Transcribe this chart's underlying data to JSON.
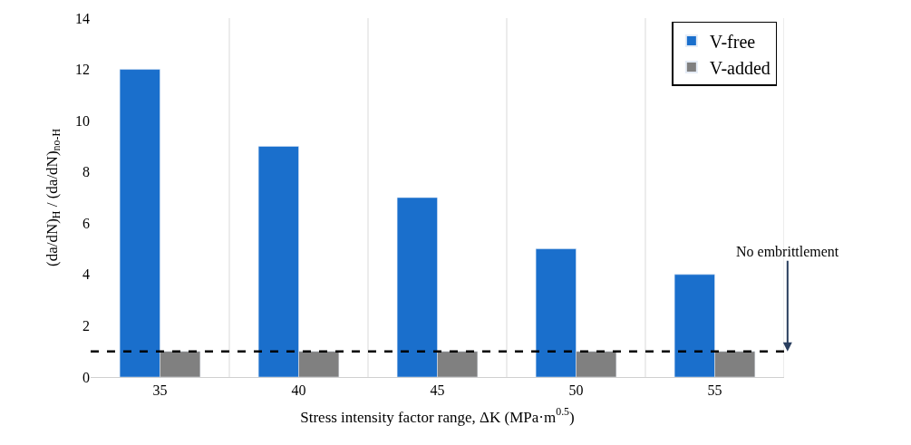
{
  "chart_data": {
    "type": "bar",
    "xlabel": "Stress intensity factor range, ΔK (MPa·m$^{0.5}$)",
    "ylabel": "(da/dN)$_{H}$ / (da/dN)$_{no-H}$",
    "categories": [
      "35",
      "40",
      "45",
      "50",
      "55"
    ],
    "series": [
      {
        "name": "V-free",
        "color": "#1a6fcc",
        "values": [
          12,
          9,
          7,
          5,
          4
        ]
      },
      {
        "name": "V-added",
        "color": "#808080",
        "values": [
          1,
          1,
          1,
          1,
          1
        ]
      }
    ],
    "ylim": [
      0,
      14
    ],
    "yticks": [
      0,
      2,
      4,
      6,
      8,
      10,
      12,
      14
    ],
    "grid": "x",
    "legend": "top right",
    "ref_lines": [
      {
        "axis": "y",
        "value": 1,
        "label": "No embrittlement",
        "color": "#000000",
        "line_style": "dashed"
      }
    ]
  }
}
